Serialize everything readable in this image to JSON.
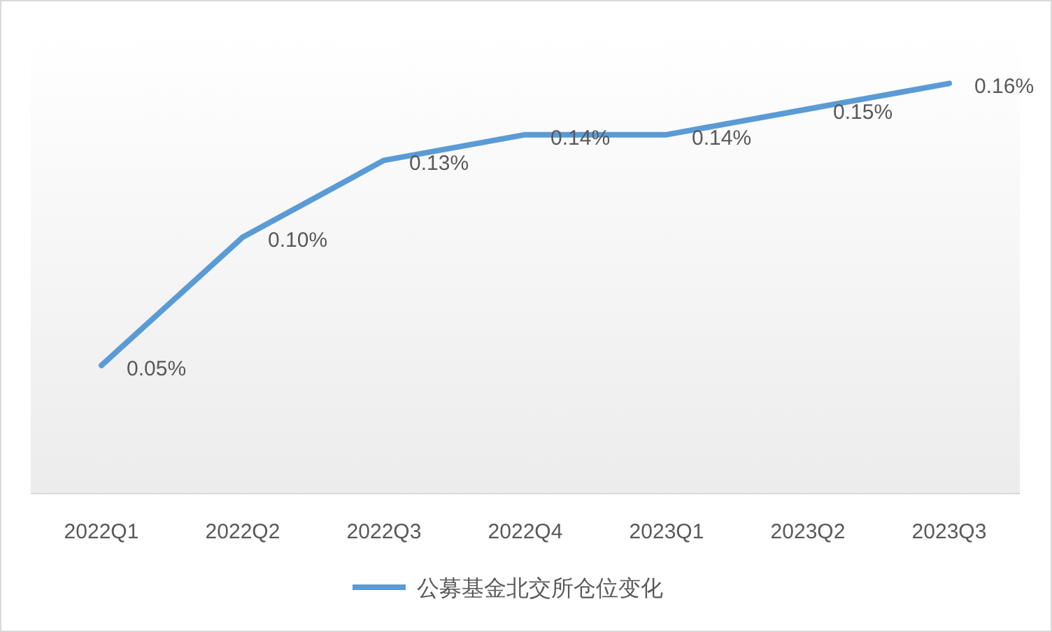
{
  "chart_data": {
    "type": "line",
    "categories": [
      "2022Q1",
      "2022Q2",
      "2022Q3",
      "2022Q4",
      "2023Q1",
      "2023Q2",
      "2023Q3"
    ],
    "series": [
      {
        "name": "公募基金北交所仓位变化",
        "color": "#5b9bd5",
        "values": [
          0.05,
          0.1,
          0.13,
          0.14,
          0.14,
          0.15,
          0.16
        ],
        "value_labels": [
          "0.05%",
          "0.10%",
          "0.13%",
          "0.14%",
          "0.14%",
          "0.15%",
          "0.16%"
        ]
      }
    ],
    "ylim": [
      0,
      0.18
    ],
    "tick_labels": "x",
    "grid": false,
    "legend": "bottom",
    "marker": "none",
    "line_style": "solid"
  }
}
